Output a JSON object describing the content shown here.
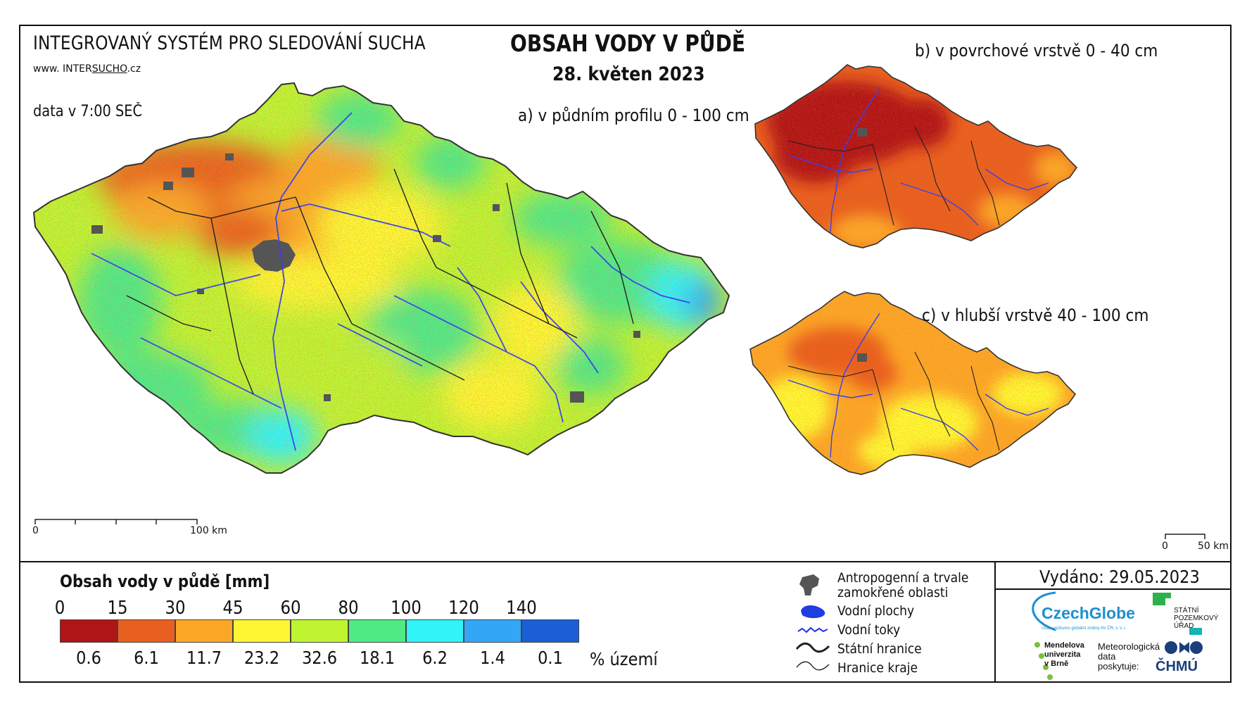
{
  "header": {
    "system_title": "INTEGROVANÝ SYSTÉM PRO SLEDOVÁNÍ SUCHA",
    "url_prefix": "www. INTER",
    "url_underlined": "SUCHO",
    "url_suffix": ".cz",
    "data_time": "data v 7:00 SEČ",
    "main_title": "OBSAH VODY V PŮDĚ",
    "main_date": "28. květen 2023"
  },
  "maps": {
    "a_label": "a) v půdním profilu 0 - 100 cm",
    "b_label": "b) v povrchové vrstvě 0 - 40 cm",
    "c_label": "c) v hlubší vrstvě 40 - 100 cm",
    "scale_main": {
      "start": "0",
      "end": "100 km"
    },
    "scale_small": {
      "start": "0",
      "end": "50 km"
    }
  },
  "legend": {
    "title": "Obsah vody v půdě  [mm]",
    "ticks": [
      "0",
      "15",
      "30",
      "45",
      "60",
      "80",
      "100",
      "120",
      "140"
    ],
    "classes": [
      {
        "color": "#b01515",
        "percent": "0.6"
      },
      {
        "color": "#e8601f",
        "percent": "6.1"
      },
      {
        "color": "#fba726",
        "percent": "11.7"
      },
      {
        "color": "#fdf632",
        "percent": "23.2"
      },
      {
        "color": "#bff431",
        "percent": "32.6"
      },
      {
        "color": "#50ea85",
        "percent": "18.1"
      },
      {
        "color": "#30f4f8",
        "percent": "6.2"
      },
      {
        "color": "#33a6f5",
        "percent": "1.4"
      },
      {
        "color": "#1b5fd6",
        "percent": "0.1"
      }
    ],
    "percent_label": "% území"
  },
  "map_legend": {
    "anthropogenic_line1": "Antropogenní a trvale",
    "anthropogenic_line2": "zamokřené oblasti",
    "water_bodies": "Vodní plochy",
    "rivers": "Vodní toky",
    "state_border": "Státní hranice",
    "region_border": "Hranice kraje"
  },
  "footer": {
    "issued": "Vydáno: 29.05.2023",
    "logo_czechglobe": "CzechGlobe",
    "logo_czechglobe_sub": "Ústav výzkumu globální změny AV ČR, v. v. i.",
    "logo_spu_line1": "STÁTNÍ",
    "logo_spu_line2": "POZEMKOVÝ",
    "logo_spu_line3": "ÚŘAD",
    "logo_mendel_line1": "Mendelova",
    "logo_mendel_line2": "univerzita",
    "logo_mendel_line3": "v Brně",
    "met_line1": "Meteorologická",
    "met_line2": "data",
    "met_line3": "poskytuje:",
    "logo_chmu": "ČHMÚ"
  },
  "colors": {
    "background": "#ffffff",
    "frame": "#111111",
    "river": "#3a3ff0",
    "urban": "#555555"
  }
}
